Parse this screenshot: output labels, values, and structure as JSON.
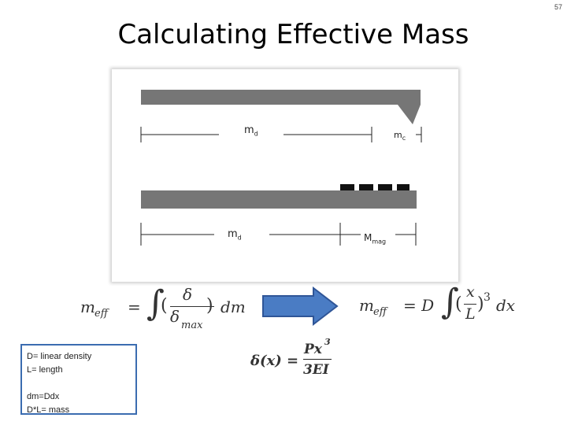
{
  "slide": {
    "number": "57",
    "title": "Calculating Effective Mass"
  },
  "diagram": {
    "top_labels": {
      "left_mass": "m",
      "left_sub": "d",
      "right_mass": "m",
      "right_sub": "c"
    },
    "bottom_labels": {
      "left_mass": "m",
      "left_sub": "d",
      "right_mass": "M",
      "right_sub": "mag"
    }
  },
  "equations": {
    "meff_integral": {
      "lhs": "m",
      "lhs_sub": "eff",
      "eq": "=",
      "numer": "δ",
      "denom": "δ",
      "denom_sub": "max",
      "tail": "dm"
    },
    "meff_result": {
      "lhs": "m",
      "lhs_sub": "eff",
      "eq": "= D",
      "numer": "x",
      "denom": "L",
      "power": "3",
      "tail": "dx"
    },
    "deflection": {
      "lhs": "δ(x) =",
      "numer": "Px",
      "power": "3",
      "denom": "3EI"
    }
  },
  "legend": {
    "line1": "D= linear density",
    "line2": "L= length",
    "line3": "dm=Ddx",
    "line4": "D*L= mass"
  },
  "colors": {
    "beam": "#767676",
    "magnet": "#111111",
    "arrow": "#4a7cc4",
    "arrow_border": "#2f5597",
    "legend_border": "#3b6cb0"
  }
}
